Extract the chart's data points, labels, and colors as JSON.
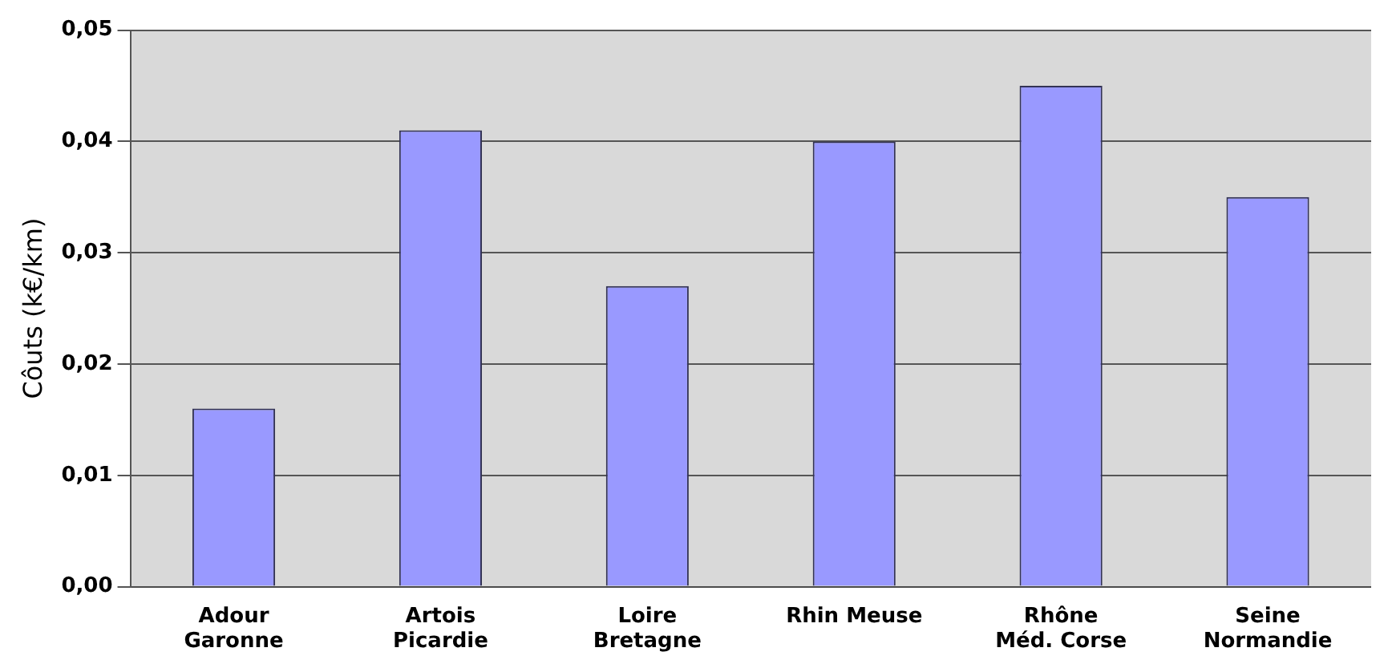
{
  "chart_data": {
    "type": "bar",
    "ylabel": "Côuts (k€/km)",
    "categories": [
      "Adour\nGaronne",
      "Artois\nPicardie",
      "Loire\nBretagne",
      "Rhin Meuse",
      "Rhône\nMéd. Corse",
      "Seine\nNormandie"
    ],
    "values": [
      0.016,
      0.041,
      0.027,
      0.04,
      0.045,
      0.035
    ],
    "color": "#9999ff",
    "ylim": [
      0,
      0.05
    ],
    "yticks": [
      {
        "value": 0,
        "label": "0,00"
      },
      {
        "value": 0.01,
        "label": "0,01"
      },
      {
        "value": 0.02,
        "label": "0,02"
      },
      {
        "value": 0.03,
        "label": "0,03"
      },
      {
        "value": 0.04,
        "label": "0,04"
      },
      {
        "value": 0.05,
        "label": "0,05"
      }
    ],
    "grid": "y",
    "legend": false
  }
}
